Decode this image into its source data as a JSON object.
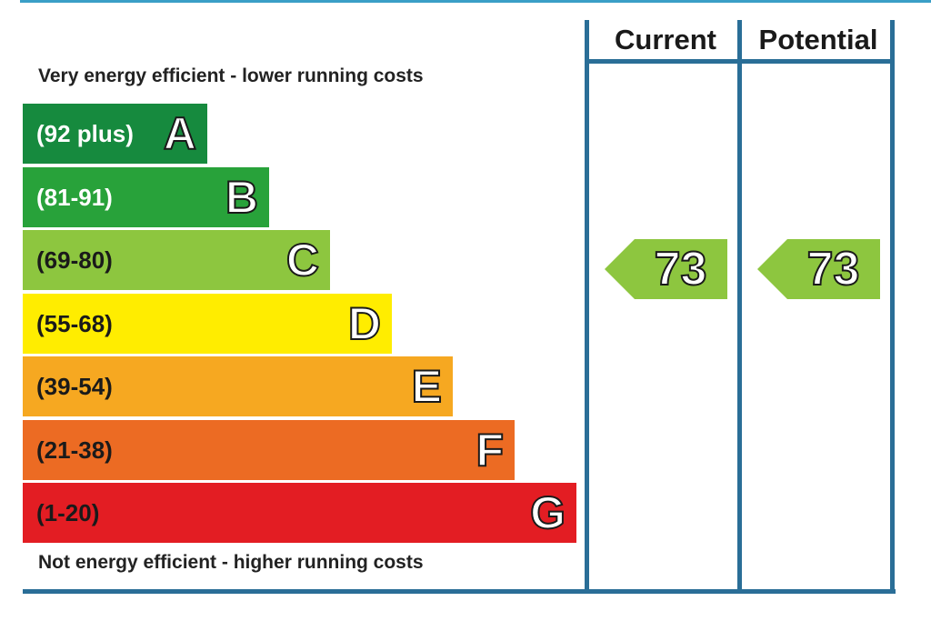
{
  "chart_data": {
    "type": "bar",
    "captions": {
      "top": "Very energy efficient - lower running costs",
      "bottom": "Not energy efficient - higher running costs"
    },
    "bands": [
      {
        "letter": "A",
        "range": "(92 plus)",
        "color": "#168a3e",
        "text_color": "#ffffff"
      },
      {
        "letter": "B",
        "range": "(81-91)",
        "color": "#28a23a",
        "text_color": "#ffffff"
      },
      {
        "letter": "C",
        "range": "(69-80)",
        "color": "#8dc63f",
        "text_color": "#1a1a1a"
      },
      {
        "letter": "D",
        "range": "(55-68)",
        "color": "#ffed00",
        "text_color": "#1a1a1a"
      },
      {
        "letter": "E",
        "range": "(39-54)",
        "color": "#f6a821",
        "text_color": "#1a1a1a"
      },
      {
        "letter": "F",
        "range": "(21-38)",
        "color": "#ec6b23",
        "text_color": "#1a1a1a"
      },
      {
        "letter": "G",
        "range": "(1-20)",
        "color": "#e31d23",
        "text_color": "#1a1a1a"
      }
    ],
    "columns": {
      "current": "Current",
      "potential": "Potential"
    },
    "ratings": {
      "current": {
        "value": "73",
        "band": "C",
        "color": "#8dc63f"
      },
      "potential": {
        "value": "73",
        "band": "C",
        "color": "#8dc63f"
      }
    }
  }
}
